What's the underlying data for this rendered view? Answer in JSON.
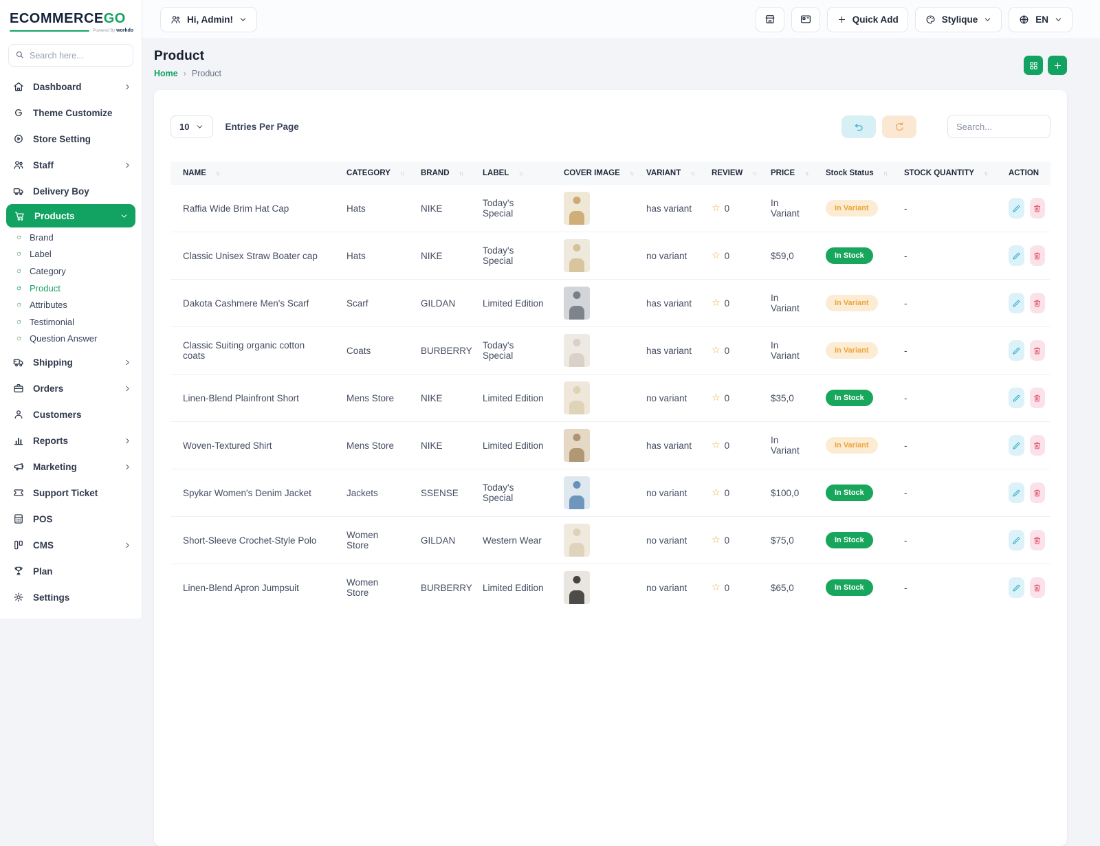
{
  "brand": {
    "logo_main": "ECOMMERCE",
    "logo_accent": "GO",
    "powered_by": "Powered By",
    "powered_brand": "workdo"
  },
  "topbar": {
    "user_button": "Hi, Admin!",
    "quick_add_label": "Quick Add",
    "theme_label": "Stylique",
    "lang_label": "EN"
  },
  "sidebar": {
    "search_placeholder": "Search here...",
    "items": [
      {
        "label": "Dashboard",
        "icon": "home-icon",
        "chevron": "right"
      },
      {
        "label": "Theme Customize",
        "icon": "theme-icon",
        "chevron": ""
      },
      {
        "label": "Store Setting",
        "icon": "store-setting-icon",
        "chevron": ""
      },
      {
        "label": "Staff",
        "icon": "staff-icon",
        "chevron": "right"
      },
      {
        "label": "Delivery Boy",
        "icon": "delivery-icon",
        "chevron": ""
      },
      {
        "label": "Products",
        "icon": "cart-icon",
        "chevron": "down",
        "active": true,
        "submenu": [
          {
            "label": "Brand"
          },
          {
            "label": "Label"
          },
          {
            "label": "Category"
          },
          {
            "label": "Product",
            "active": true
          },
          {
            "label": "Attributes"
          },
          {
            "label": "Testimonial"
          },
          {
            "label": "Question Answer"
          }
        ]
      },
      {
        "label": "Shipping",
        "icon": "shipping-icon",
        "chevron": "right"
      },
      {
        "label": "Orders",
        "icon": "orders-icon",
        "chevron": "right"
      },
      {
        "label": "Customers",
        "icon": "customers-icon",
        "chevron": ""
      },
      {
        "label": "Reports",
        "icon": "reports-icon",
        "chevron": "right"
      },
      {
        "label": "Marketing",
        "icon": "marketing-icon",
        "chevron": "right"
      },
      {
        "label": "Support Ticket",
        "icon": "ticket-icon",
        "chevron": ""
      },
      {
        "label": "POS",
        "icon": "pos-icon",
        "chevron": ""
      },
      {
        "label": "CMS",
        "icon": "cms-icon",
        "chevron": "right"
      },
      {
        "label": "Plan",
        "icon": "plan-icon",
        "chevron": ""
      },
      {
        "label": "Settings",
        "icon": "settings-icon",
        "chevron": ""
      }
    ]
  },
  "page": {
    "title": "Product",
    "breadcrumb_home": "Home",
    "breadcrumb_sep": "›",
    "breadcrumb_current": "Product"
  },
  "controls": {
    "entries_value": "10",
    "entries_label": "Entries Per Page",
    "search_placeholder": "Search..."
  },
  "colors": {
    "primary_green": "#12a262",
    "badge_instock_bg": "#17a65b",
    "badge_invariant_bg": "#fcecd3",
    "badge_invariant_fg": "#eda53d",
    "edit_btn": "#2ab3c6",
    "delete_btn": "#e85572",
    "star": "#f4a93c"
  },
  "table": {
    "columns": [
      {
        "label": "NAME",
        "sortable": true
      },
      {
        "label": "CATEGORY",
        "sortable": true
      },
      {
        "label": "BRAND",
        "sortable": true
      },
      {
        "label": "LABEL",
        "sortable": true
      },
      {
        "label": "COVER IMAGE",
        "sortable": true
      },
      {
        "label": "VARIANT",
        "sortable": true
      },
      {
        "label": "REVIEW",
        "sortable": true
      },
      {
        "label": "PRICE",
        "sortable": true
      },
      {
        "label": "Stock Status",
        "sortable": true
      },
      {
        "label": "STOCK QUANTITY",
        "sortable": true
      },
      {
        "label": "ACTION",
        "sortable": false
      }
    ],
    "rows": [
      {
        "name": "Raffia Wide Brim Hat Cap",
        "category": "Hats",
        "brand": "NIKE",
        "label": "Today's Special",
        "img_bg": "#efe8d7",
        "img_fg": "#caa36a",
        "variant": "has variant",
        "review": "0",
        "price": "In Variant",
        "stock_status": "In Variant",
        "stock_type": "warning",
        "stock_qty": "-"
      },
      {
        "name": "Classic Unisex Straw Boater cap",
        "category": "Hats",
        "brand": "NIKE",
        "label": "Today's Special",
        "img_bg": "#eee9dd",
        "img_fg": "#d3bd92",
        "variant": "no variant",
        "review": "0",
        "price": "$59,0",
        "stock_status": "In Stock",
        "stock_type": "success",
        "stock_qty": "-"
      },
      {
        "name": "Dakota Cashmere Men's Scarf",
        "category": "Scarf",
        "brand": "GILDAN",
        "label": "Limited Edition",
        "img_bg": "#d2d5d9",
        "img_fg": "#70757d",
        "variant": "has variant",
        "review": "0",
        "price": "In Variant",
        "stock_status": "In Variant",
        "stock_type": "warning",
        "stock_qty": "-"
      },
      {
        "name": "Classic Suiting organic cotton coats",
        "category": "Coats",
        "brand": "BURBERRY",
        "label": "Today's Special",
        "img_bg": "#efe9e3",
        "img_fg": "#d6cdc3",
        "variant": "has variant",
        "review": "0",
        "price": "In Variant",
        "stock_status": "In Variant",
        "stock_type": "warning",
        "stock_qty": "-"
      },
      {
        "name": "Linen-Blend Plainfront Short",
        "category": "Mens Store",
        "brand": "NIKE",
        "label": "Limited Edition",
        "img_bg": "#efe8da",
        "img_fg": "#dccfb2",
        "variant": "no variant",
        "review": "0",
        "price": "$35,0",
        "stock_status": "In Stock",
        "stock_type": "success",
        "stock_qty": "-"
      },
      {
        "name": "Woven-Textured Shirt",
        "category": "Mens Store",
        "brand": "NIKE",
        "label": "Limited Edition",
        "img_bg": "#e5d8c5",
        "img_fg": "#a78d66",
        "variant": "has variant",
        "review": "0",
        "price": "In Variant",
        "stock_status": "In Variant",
        "stock_type": "warning",
        "stock_qty": "-"
      },
      {
        "name": "Spykar Women's Denim Jacket",
        "category": "Jackets",
        "brand": "SSENSE",
        "label": "Today's Special",
        "img_bg": "#e0e8ef",
        "img_fg": "#5b88b4",
        "variant": "no variant",
        "review": "0",
        "price": "$100,0",
        "stock_status": "In Stock",
        "stock_type": "success",
        "stock_qty": "-"
      },
      {
        "name": "Short-Sleeve Crochet-Style Polo",
        "category": "Women Store",
        "brand": "GILDAN",
        "label": "Western Wear",
        "img_bg": "#f0e9dd",
        "img_fg": "#ddcfb6",
        "variant": "no variant",
        "review": "0",
        "price": "$75,0",
        "stock_status": "In Stock",
        "stock_type": "success",
        "stock_qty": "-"
      },
      {
        "name": "Linen-Blend Apron Jumpsuit",
        "category": "Women Store",
        "brand": "BURBERRY",
        "label": "Limited Edition",
        "img_bg": "#e9e5e0",
        "img_fg": "#33302d",
        "variant": "no variant",
        "review": "0",
        "price": "$65,0",
        "stock_status": "In Stock",
        "stock_type": "success",
        "stock_qty": "-"
      }
    ]
  }
}
